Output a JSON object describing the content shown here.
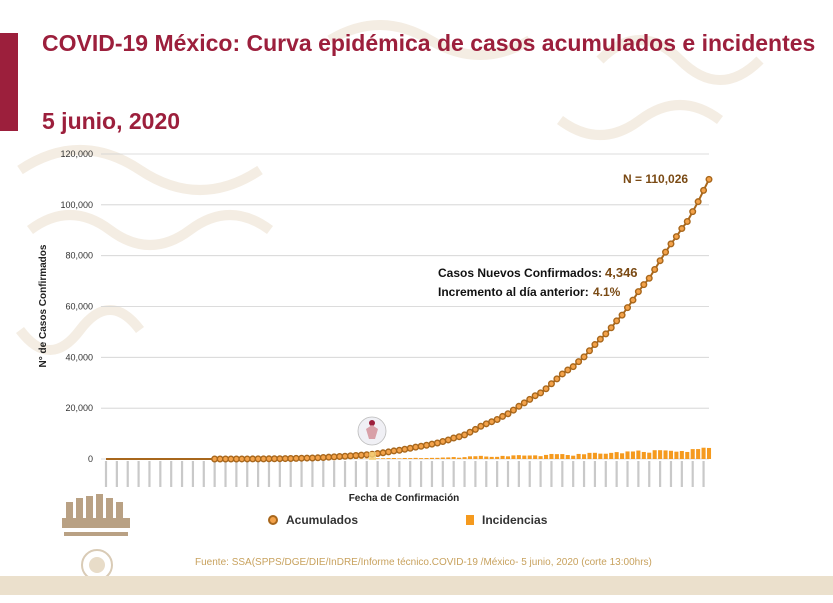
{
  "title": "COVID-19 México: Curva epidémica de casos acumulados e incidentes",
  "date": "5 junio, 2020",
  "source": "Fuente: SSA(SPPS/DGE/DIE/InDRE/Informe técnico.COVID-19 /México- 5 junio, 2020 (corte 13:00hrs)",
  "colors": {
    "brand": "#9c1f3c",
    "accum_line": "#a8671c",
    "accum_marker": "#f3a24a",
    "incid": "#f59a1e",
    "annotation": "#7a4a14"
  },
  "chart_data": {
    "type": "line",
    "title": "",
    "xlabel": "Fecha de Confirmación",
    "ylabel": "N° de Casos Confirmados",
    "ylim": [
      0,
      120000
    ],
    "yticks": [
      0,
      20000,
      40000,
      60000,
      80000,
      100000,
      120000
    ],
    "ytick_labels": [
      "0",
      "20,000",
      "40,000",
      "60,000",
      "80,000",
      "100,000",
      "120,000"
    ],
    "grid": true,
    "legend_position": "bottom",
    "annotations": {
      "total": "N = 110,026",
      "new_cases_label": "Casos Nuevos Confirmados:",
      "new_cases_value": "4,346",
      "increment_label": "Incremento al día anterior:",
      "increment_value": "4.1%"
    },
    "series": [
      {
        "name": "Acumulados",
        "kind": "line",
        "values": [
          0,
          0,
          0,
          0,
          0,
          0,
          0,
          0,
          0,
          0,
          0,
          0,
          0,
          0,
          0,
          0,
          0,
          0,
          0,
          0,
          1,
          3,
          5,
          7,
          11,
          15,
          20,
          26,
          41,
          53,
          82,
          93,
          118,
          164,
          203,
          251,
          316,
          367,
          405,
          475,
          585,
          717,
          848,
          993,
          1094,
          1215,
          1378,
          1510,
          1688,
          1890,
          2143,
          2439,
          2785,
          3181,
          3441,
          3844,
          4219,
          4661,
          5014,
          5399,
          5847,
          6297,
          6875,
          7497,
          8261,
          8772,
          9501,
          10544,
          11633,
          12872,
          13842,
          14677,
          15529,
          16752,
          17799,
          19224,
          20739,
          22088,
          23471,
          24905,
          26025,
          27634,
          29616,
          31522,
          33460,
          35022,
          36327,
          38324,
          40186,
          42595,
          45032,
          47144,
          49219,
          51633,
          54346,
          56594,
          59567,
          62527,
          65856,
          68620,
          71105,
          74560,
          78023,
          81400,
          84627,
          87512,
          90664,
          93435,
          97326,
          101238,
          105680,
          110026
        ]
      },
      {
        "name": "Incidencias",
        "kind": "bar",
        "values": [
          0,
          0,
          0,
          0,
          0,
          0,
          0,
          0,
          0,
          0,
          0,
          0,
          0,
          0,
          0,
          0,
          0,
          0,
          0,
          0,
          1,
          2,
          2,
          2,
          4,
          4,
          5,
          6,
          15,
          12,
          29,
          11,
          25,
          46,
          39,
          48,
          65,
          51,
          38,
          70,
          110,
          132,
          131,
          145,
          101,
          121,
          163,
          132,
          178,
          202,
          253,
          296,
          346,
          396,
          260,
          403,
          375,
          442,
          353,
          385,
          448,
          450,
          578,
          622,
          764,
          511,
          729,
          1043,
          1089,
          1239,
          970,
          835,
          852,
          1223,
          1047,
          1425,
          1515,
          1349,
          1383,
          1434,
          1120,
          1609,
          1982,
          1906,
          1938,
          1562,
          1305,
          1997,
          1862,
          2409,
          2437,
          2112,
          2075,
          2414,
          2713,
          2248,
          2973,
          2960,
          3329,
          2764,
          2485,
          3455,
          3463,
          3377,
          3227,
          2885,
          3152,
          2771,
          3891,
          3912,
          4442,
          4346
        ]
      }
    ]
  }
}
